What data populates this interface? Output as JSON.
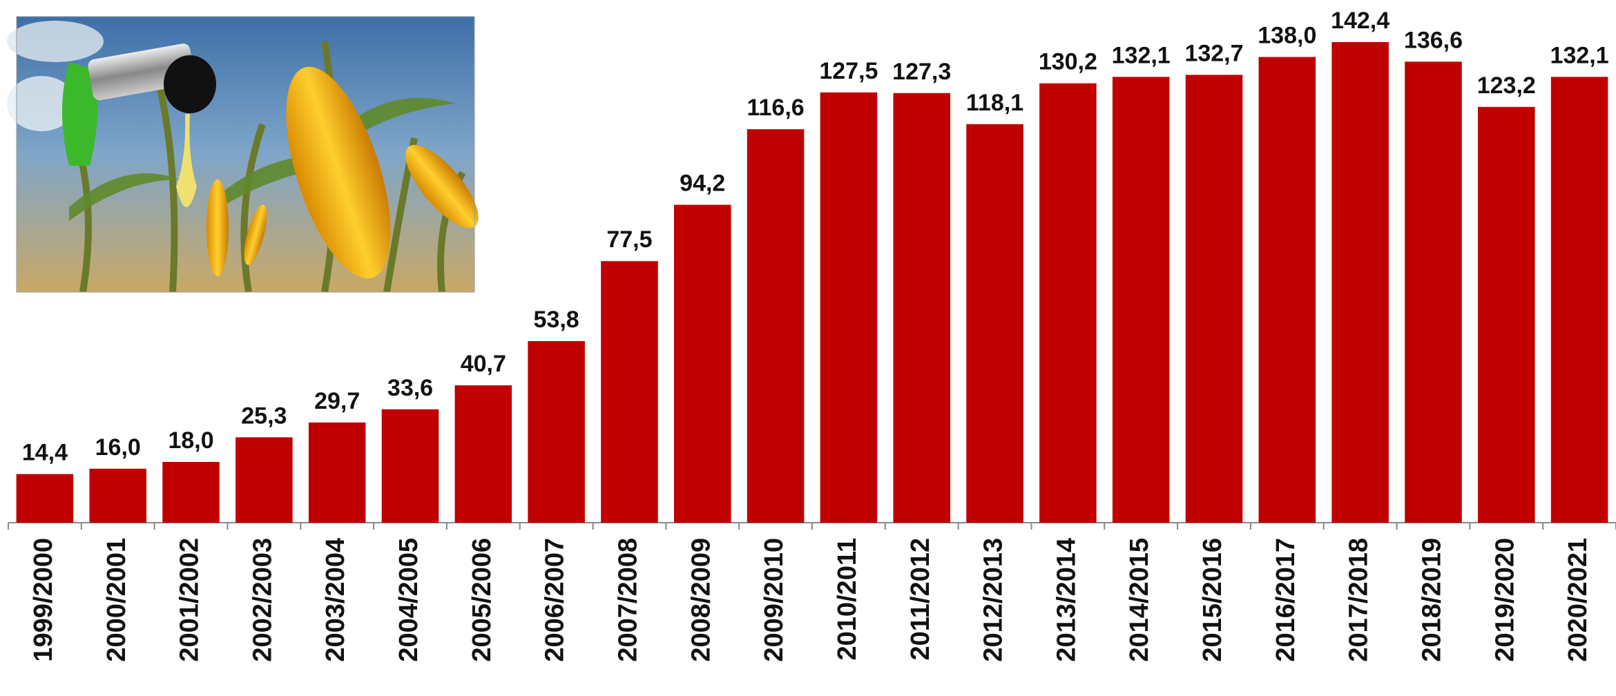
{
  "chart_data": {
    "type": "bar",
    "categories": [
      "1999/2000",
      "2000/2001",
      "2001/2002",
      "2002/2003",
      "2003/2004",
      "2004/2005",
      "2005/2006",
      "2006/2007",
      "2007/2008",
      "2008/2009",
      "2009/2010",
      "2010/2011",
      "2011/2012",
      "2012/2013",
      "2013/2014",
      "2014/2015",
      "2015/2016",
      "2016/2017",
      "2017/2018",
      "2018/2019",
      "2019/2020",
      "2020/2021"
    ],
    "values": [
      14.4,
      16.0,
      18.0,
      25.3,
      29.7,
      33.6,
      40.7,
      53.8,
      77.5,
      94.2,
      116.6,
      127.5,
      127.3,
      118.1,
      130.2,
      132.1,
      132.7,
      138.0,
      142.4,
      136.6,
      123.2,
      132.1
    ],
    "value_labels": [
      "14,4",
      "16,0",
      "18,0",
      "25,3",
      "29,7",
      "33,6",
      "40,7",
      "53,8",
      "77,5",
      "94,2",
      "116,6",
      "127,5",
      "127,3",
      "118,1",
      "130,2",
      "132,1",
      "132,7",
      "138,0",
      "142,4",
      "136,6",
      "123,2",
      "132,1"
    ],
    "color": "#c00000"
  }
}
